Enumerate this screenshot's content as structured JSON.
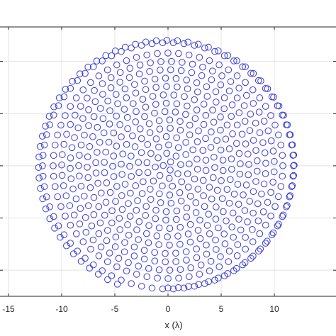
{
  "chart_data": {
    "type": "scatter",
    "xlabel": "x (λ)",
    "xlim": [
      -15.8,
      15.8
    ],
    "ylim": [
      -12.5,
      13.3
    ],
    "xticks": [
      -15,
      -10,
      -5,
      0,
      5,
      10
    ],
    "xtick_labels": [
      "-15",
      "-10",
      "-5",
      "0",
      "5",
      "10"
    ],
    "yticks": [
      -10,
      -5,
      0,
      5,
      10
    ],
    "grid": true,
    "marker": "circle-open",
    "colors": {
      "marker": "#3b3bd6",
      "grid": "#e3e3e3",
      "axis": "#262626"
    },
    "series": [
      {
        "rings": [
          {
            "r": 11.8,
            "n": 74
          },
          {
            "r": 10.8,
            "n": 68
          },
          {
            "r": 10.0,
            "n": 63
          },
          {
            "r": 9.2,
            "n": 58
          },
          {
            "r": 8.4,
            "n": 53
          },
          {
            "r": 7.6,
            "n": 48
          },
          {
            "r": 6.8,
            "n": 43
          },
          {
            "r": 6.0,
            "n": 38
          },
          {
            "r": 5.2,
            "n": 33
          },
          {
            "r": 4.4,
            "n": 28
          },
          {
            "r": 3.6,
            "n": 23
          },
          {
            "r": 2.8,
            "n": 18
          },
          {
            "r": 2.0,
            "n": 13
          },
          {
            "r": 1.2,
            "n": 8
          },
          {
            "r": 0.45,
            "n": 3
          }
        ],
        "outer_spiral": {
          "r_start": 11.7,
          "r_end": 12.3,
          "turns": 0.95,
          "n": 72
        }
      }
    ]
  }
}
